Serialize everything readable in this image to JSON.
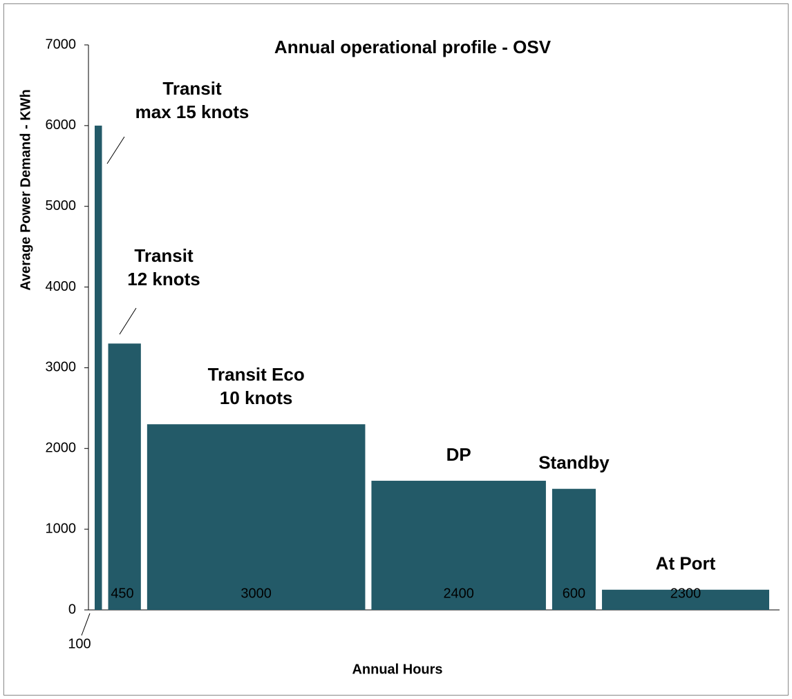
{
  "chart_data": {
    "type": "variable-width-bar",
    "title": "Annual operational profile - OSV",
    "ylabel": "Average Power Demand - KWh",
    "xlabel": "Annual Hours",
    "categories": [
      [
        "Transit",
        "max 15 knots"
      ],
      [
        "Transit",
        "12 knots"
      ],
      [
        "Transit Eco",
        "10 knots"
      ],
      [
        "DP"
      ],
      [
        "Standby"
      ],
      [
        "At Port"
      ]
    ],
    "values": [
      6000,
      3300,
      2300,
      1600,
      1500,
      250
    ],
    "widths": [
      100,
      450,
      3000,
      2400,
      600,
      2300
    ],
    "color": "#235a68",
    "ylim": [
      0,
      7000
    ],
    "yticks": [
      0,
      1000,
      2000,
      3000,
      4000,
      5000,
      6000,
      7000
    ]
  }
}
